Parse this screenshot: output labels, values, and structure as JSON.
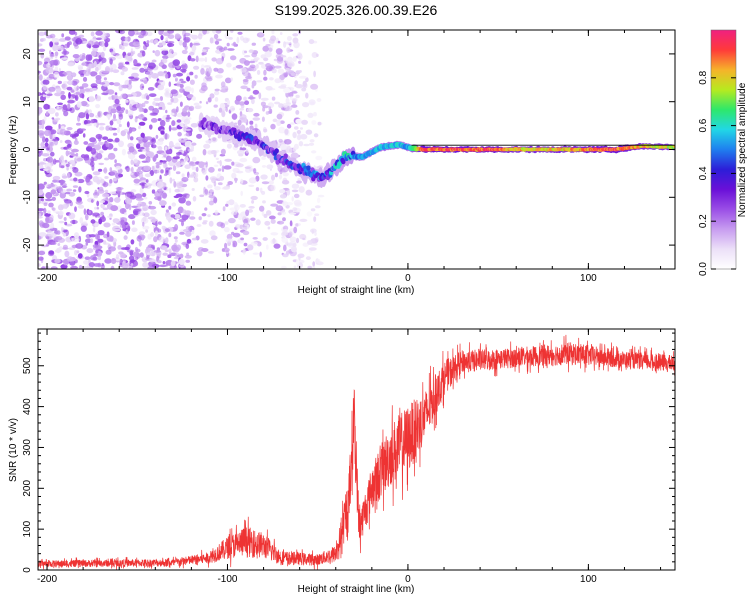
{
  "figure": {
    "title": "S199.2025.326.00.39.E26"
  },
  "colors": {
    "snr_line": "#ee3333",
    "colormap": [
      "#ffffff",
      "#ece0f8",
      "#c79cf0",
      "#9a4ee6",
      "#6a10d8",
      "#2c1ed8",
      "#1f7fef",
      "#21d7e6",
      "#2ee86a",
      "#b7ea1f",
      "#f6b32a",
      "#ff3a3a",
      "#f02080"
    ]
  },
  "chart_data": [
    {
      "id": "spectrogram",
      "type": "heatmap",
      "title": "S199.2025.326.00.39.E26",
      "xlabel": "Height of straight line (km)",
      "ylabel": "Frequency (Hz)",
      "xlim": [
        -205,
        148
      ],
      "ylim": [
        -25,
        25
      ],
      "xticks": [
        -200,
        -100,
        0,
        100
      ],
      "yticks": [
        -20,
        -10,
        0,
        10,
        20
      ],
      "colorbar": {
        "label": "Normalized spectral amplitude",
        "range": [
          0,
          1
        ],
        "ticks": [
          0.0,
          0.2,
          0.4,
          0.6,
          0.8
        ]
      },
      "noise_regions": [
        {
          "x": [
            -205,
            -120
          ],
          "y": [
            -25,
            25
          ],
          "density": "high",
          "amp": 0.2
        },
        {
          "x": [
            -120,
            -60
          ],
          "y": [
            -22,
            25
          ],
          "density": "medium",
          "amp": 0.15
        },
        {
          "x": [
            -70,
            -48
          ],
          "y": [
            -25,
            23
          ],
          "density": "low",
          "amp": 0.08
        }
      ],
      "signal_track": [
        {
          "x": -115,
          "f": 5.5,
          "amp": 0.25
        },
        {
          "x": -100,
          "f": 4.0,
          "amp": 0.3
        },
        {
          "x": -85,
          "f": 2.0,
          "amp": 0.35
        },
        {
          "x": -70,
          "f": -2.0,
          "amp": 0.35
        },
        {
          "x": -60,
          "f": -4.0,
          "amp": 0.38
        },
        {
          "x": -48,
          "f": -6.0,
          "amp": 0.42
        },
        {
          "x": -40,
          "f": -3.5,
          "amp": 0.45
        },
        {
          "x": -35,
          "f": -1.5,
          "amp": 0.48
        },
        {
          "x": -25,
          "f": -1.5,
          "amp": 0.55
        },
        {
          "x": -15,
          "f": 0.5,
          "amp": 0.6
        },
        {
          "x": -5,
          "f": 1.0,
          "amp": 0.6
        },
        {
          "x": 0,
          "f": 0.5,
          "amp": 0.55
        },
        {
          "x": 8,
          "f": 0.0,
          "amp": 0.95
        },
        {
          "x": 45,
          "f": 0.0,
          "amp": 0.95
        },
        {
          "x": 60,
          "f": 0.0,
          "amp": 0.85
        },
        {
          "x": 85,
          "f": 0.0,
          "amp": 0.85
        },
        {
          "x": 115,
          "f": 0.0,
          "amp": 0.95
        },
        {
          "x": 130,
          "f": 0.7,
          "amp": 0.85
        },
        {
          "x": 148,
          "f": 0.5,
          "amp": 0.8
        }
      ]
    },
    {
      "id": "snr",
      "type": "line",
      "xlabel": "Height of straight line (km)",
      "ylabel": "SNR (10 * v/v)",
      "xlim": [
        -205,
        148
      ],
      "ylim": [
        0,
        590
      ],
      "xticks": [
        -200,
        -100,
        0,
        100
      ],
      "yticks": [
        0,
        100,
        200,
        300,
        400,
        500
      ],
      "series": [
        {
          "name": "SNR",
          "envelope": [
            {
              "x": -205,
              "mean": 15,
              "noise": 12
            },
            {
              "x": -130,
              "mean": 18,
              "noise": 14
            },
            {
              "x": -110,
              "mean": 30,
              "noise": 20
            },
            {
              "x": -100,
              "mean": 55,
              "noise": 40
            },
            {
              "x": -90,
              "mean": 70,
              "noise": 55
            },
            {
              "x": -80,
              "mean": 60,
              "noise": 45
            },
            {
              "x": -70,
              "mean": 30,
              "noise": 25
            },
            {
              "x": -50,
              "mean": 25,
              "noise": 20
            },
            {
              "x": -40,
              "mean": 40,
              "noise": 30
            },
            {
              "x": -33,
              "mean": 150,
              "noise": 90
            },
            {
              "x": -30,
              "mean": 380,
              "noise": 150
            },
            {
              "x": -27,
              "mean": 100,
              "noise": 60
            },
            {
              "x": -20,
              "mean": 200,
              "noise": 80
            },
            {
              "x": -10,
              "mean": 280,
              "noise": 110
            },
            {
              "x": 0,
              "mean": 320,
              "noise": 120
            },
            {
              "x": 10,
              "mean": 380,
              "noise": 90
            },
            {
              "x": 20,
              "mean": 470,
              "noise": 60
            },
            {
              "x": 30,
              "mean": 510,
              "noise": 40
            },
            {
              "x": 60,
              "mean": 520,
              "noise": 35
            },
            {
              "x": 90,
              "mean": 530,
              "noise": 40
            },
            {
              "x": 120,
              "mean": 515,
              "noise": 30
            },
            {
              "x": 148,
              "mean": 505,
              "noise": 30
            }
          ]
        }
      ]
    }
  ]
}
